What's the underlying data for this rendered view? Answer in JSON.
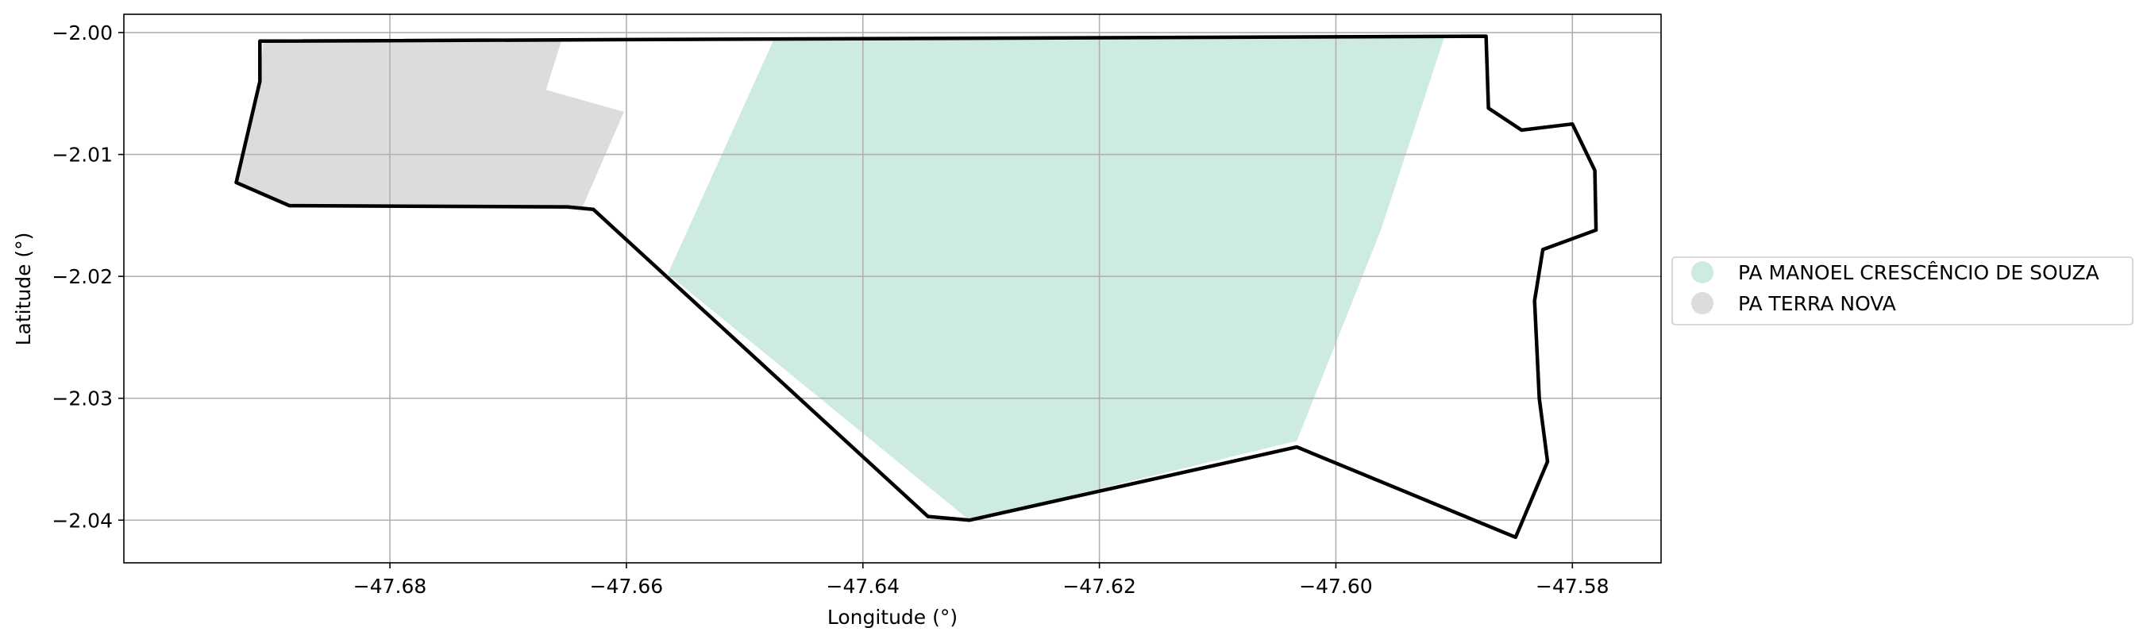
{
  "map": {
    "xlabel": "Longitude (°)",
    "ylabel": "Latitude (°)",
    "xlim": [
      -47.7025,
      -47.5725
    ],
    "ylim": [
      -2.0435,
      -1.9985
    ],
    "xticks": [
      -47.68,
      -47.66,
      -47.64,
      -47.62,
      -47.6,
      -47.58
    ],
    "yticks": [
      -2.0,
      -2.01,
      -2.02,
      -2.03,
      -2.04
    ],
    "xtick_labels": [
      "−47.68",
      "−47.66",
      "−47.64",
      "−47.62",
      "−47.60",
      "−47.58"
    ],
    "ytick_labels": [
      "−2.00",
      "−2.01",
      "−2.02",
      "−2.03",
      "−2.04"
    ],
    "grid": true,
    "legend_placement": "center-right outside",
    "colors": {
      "manoel": "#cdebde",
      "terra_nova": "#dcdcdc",
      "boundary": "#000000"
    }
  },
  "layers": [
    {
      "name": "PA MANOEL CRESCÊNCIO DE SOUZA",
      "color": "#cdebde",
      "coords": [
        [
          -47.6475,
          -2.0005
        ],
        [
          -47.5908,
          -2.0003
        ],
        [
          -47.5962,
          -2.0162
        ],
        [
          -47.6033,
          -2.0335
        ],
        [
          -47.631,
          -2.04
        ],
        [
          -47.6565,
          -2.0198
        ]
      ]
    },
    {
      "name": "PA TERRA NOVA",
      "color": "#dcdcdc",
      "coords": [
        [
          -47.6907,
          -2.0007
        ],
        [
          -47.6655,
          -2.0007
        ],
        [
          -47.6668,
          -2.0047
        ],
        [
          -47.6602,
          -2.0065
        ],
        [
          -47.6638,
          -2.0145
        ],
        [
          -47.6885,
          -2.0142
        ],
        [
          -47.693,
          -2.0123
        ],
        [
          -47.691,
          -2.004
        ]
      ]
    }
  ],
  "boundary": [
    [
      -47.691,
      -2.0007
    ],
    [
      -47.5873,
      -2.0003
    ],
    [
      -47.5871,
      -2.0062
    ],
    [
      -47.5843,
      -2.008
    ],
    [
      -47.58,
      -2.0075
    ],
    [
      -47.5781,
      -2.0113
    ],
    [
      -47.578,
      -2.0162
    ],
    [
      -47.5825,
      -2.0178
    ],
    [
      -47.5832,
      -2.022
    ],
    [
      -47.5828,
      -2.03
    ],
    [
      -47.5821,
      -2.0352
    ],
    [
      -47.5848,
      -2.0414
    ],
    [
      -47.6033,
      -2.034
    ],
    [
      -47.631,
      -2.04
    ],
    [
      -47.6345,
      -2.0397
    ],
    [
      -47.6628,
      -2.0145
    ],
    [
      -47.665,
      -2.0143
    ],
    [
      -47.6885,
      -2.0142
    ],
    [
      -47.693,
      -2.0123
    ],
    [
      -47.691,
      -2.004
    ],
    [
      -47.691,
      -2.0007
    ]
  ],
  "legend": {
    "items": [
      {
        "label": "PA MANOEL CRESCÊNCIO DE SOUZA",
        "color": "#cdebde"
      },
      {
        "label": "PA TERRA NOVA",
        "color": "#dcdcdc"
      }
    ]
  }
}
